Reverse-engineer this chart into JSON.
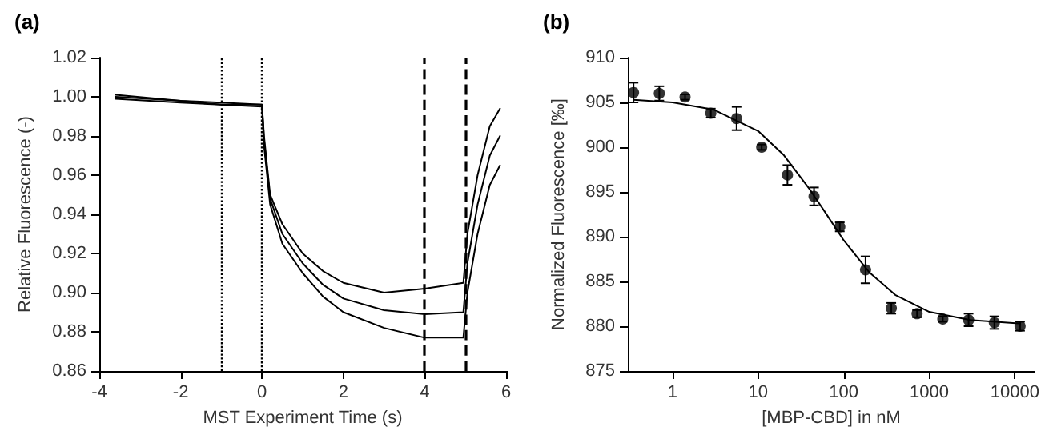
{
  "chart_data": [
    {
      "type": "line",
      "title": "(a)",
      "xlabel": "MST Experiment Time (s)",
      "ylabel": "Relative Fluorescence (-)",
      "xlim": [
        -4,
        6
      ],
      "xticks": [
        -4,
        -2,
        0,
        2,
        4,
        6
      ],
      "ylim": [
        0.86,
        1.02
      ],
      "yticks": [
        {
          "value": 0.86,
          "label": "0.86"
        },
        {
          "value": 0.88,
          "label": "0.88"
        },
        {
          "value": 0.9,
          "label": "0.90"
        },
        {
          "value": 0.92,
          "label": "0.92"
        },
        {
          "value": 0.94,
          "label": "0.94"
        },
        {
          "value": 0.96,
          "label": "0.96"
        },
        {
          "value": 0.98,
          "label": "0.98"
        },
        {
          "value": 1.0,
          "label": "1.00"
        },
        {
          "value": 1.02,
          "label": "1.02"
        }
      ],
      "grid": false,
      "marker": "none",
      "line_style": "solid",
      "series": [
        {
          "color": "#000000",
          "x": [
            -3.6,
            -2,
            -1,
            0,
            0.05,
            0.2,
            0.5,
            1,
            1.5,
            2,
            3,
            4,
            4.95,
            5.05,
            5.3,
            5.6,
            5.85
          ],
          "values": [
            1.001,
            0.998,
            0.997,
            0.996,
            0.98,
            0.95,
            0.935,
            0.92,
            0.911,
            0.905,
            0.9,
            0.902,
            0.905,
            0.93,
            0.96,
            0.985,
            0.994
          ]
        },
        {
          "color": "#000000",
          "x": [
            -3.6,
            -2,
            -1,
            0,
            0.05,
            0.2,
            0.5,
            1,
            1.5,
            2,
            3,
            4,
            4.95,
            5.05,
            5.3,
            5.6,
            5.85
          ],
          "values": [
            1.0,
            0.998,
            0.996,
            0.996,
            0.978,
            0.948,
            0.93,
            0.915,
            0.904,
            0.897,
            0.891,
            0.889,
            0.89,
            0.915,
            0.945,
            0.97,
            0.98
          ]
        },
        {
          "color": "#000000",
          "x": [
            -3.6,
            -2,
            -1,
            0,
            0.05,
            0.2,
            0.5,
            1,
            1.5,
            2,
            3,
            4,
            4.95,
            5.05,
            5.3,
            5.6,
            5.85
          ],
          "values": [
            0.999,
            0.997,
            0.996,
            0.995,
            0.975,
            0.945,
            0.925,
            0.91,
            0.898,
            0.89,
            0.882,
            0.877,
            0.877,
            0.9,
            0.93,
            0.955,
            0.965
          ]
        }
      ],
      "ref_lines": [
        {
          "axis": "x",
          "value": -1,
          "line_style": "dotted",
          "color": "#000000"
        },
        {
          "axis": "x",
          "value": 0,
          "line_style": "dotted",
          "color": "#000000"
        },
        {
          "axis": "x",
          "value": 4,
          "line_style": "dashed",
          "color": "#000000"
        },
        {
          "axis": "x",
          "value": 5,
          "line_style": "dashed",
          "color": "#000000"
        }
      ]
    },
    {
      "type": "scatter",
      "title": "(b)",
      "xlabel": "[MBP-CBD] in nM",
      "ylabel": "Normalized Fluorescence [‰]",
      "log": "x",
      "xlim": [
        0.3,
        17000
      ],
      "xticks": [
        1,
        10,
        100,
        1000,
        10000
      ],
      "ylim": [
        875,
        910
      ],
      "yticks": [
        875,
        880,
        885,
        890,
        895,
        900,
        905,
        910
      ],
      "grid": false,
      "marker": "circle",
      "series": [
        {
          "color": "#000000",
          "x": [
            0.35,
            0.7,
            1.4,
            2.8,
            5.6,
            11,
            22,
            45,
            90,
            180,
            360,
            720,
            1440,
            2880,
            5760,
            11500
          ],
          "values": [
            906.1,
            906.0,
            905.6,
            903.8,
            903.2,
            900.0,
            896.9,
            894.5,
            891.1,
            886.3,
            882.0,
            881.4,
            880.8,
            880.7,
            880.4,
            880.0
          ],
          "errors": [
            1.1,
            0.8,
            0.3,
            0.5,
            1.3,
            0.3,
            1.1,
            1.0,
            0.5,
            1.5,
            0.6,
            0.4,
            0.3,
            0.7,
            0.7,
            0.5
          ]
        },
        {
          "type": "line",
          "color": "#000000",
          "marker": "none",
          "x": [
            0.35,
            1,
            3,
            10,
            20,
            40,
            60,
            100,
            200,
            400,
            1000,
            3000,
            11500
          ],
          "values": [
            905.3,
            905.0,
            904.2,
            901.8,
            899.1,
            895.3,
            892.8,
            889.6,
            886.0,
            883.5,
            881.6,
            880.7,
            880.3
          ]
        }
      ]
    }
  ]
}
